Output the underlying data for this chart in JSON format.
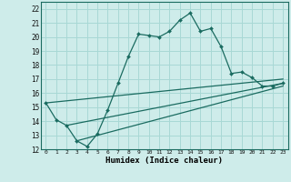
{
  "xlabel": "Humidex (Indice chaleur)",
  "background_color": "#ceecea",
  "grid_color": "#a8d8d5",
  "line_color": "#1a6b60",
  "xlim": [
    -0.5,
    23.5
  ],
  "ylim": [
    12,
    22.5
  ],
  "xticks": [
    0,
    1,
    2,
    3,
    4,
    5,
    6,
    7,
    8,
    9,
    10,
    11,
    12,
    13,
    14,
    15,
    16,
    17,
    18,
    19,
    20,
    21,
    22,
    23
  ],
  "yticks": [
    12,
    13,
    14,
    15,
    16,
    17,
    18,
    19,
    20,
    21,
    22
  ],
  "line1_x": [
    0,
    1,
    2,
    3,
    4,
    5,
    6,
    7,
    8,
    9,
    10,
    11,
    12,
    13,
    14,
    15,
    16,
    17,
    18,
    19,
    20,
    21,
    22,
    23
  ],
  "line1_y": [
    15.3,
    14.1,
    13.7,
    12.6,
    12.2,
    13.1,
    14.8,
    16.7,
    18.6,
    20.2,
    20.1,
    20.0,
    20.4,
    21.2,
    21.7,
    20.4,
    20.6,
    19.3,
    17.4,
    17.5,
    17.1,
    16.5,
    16.5,
    16.7
  ],
  "line2_x": [
    0,
    23
  ],
  "line2_y": [
    15.3,
    17.0
  ],
  "line3_x": [
    2,
    23
  ],
  "line3_y": [
    13.7,
    16.7
  ],
  "line4_x": [
    3,
    23
  ],
  "line4_y": [
    12.6,
    16.5
  ]
}
